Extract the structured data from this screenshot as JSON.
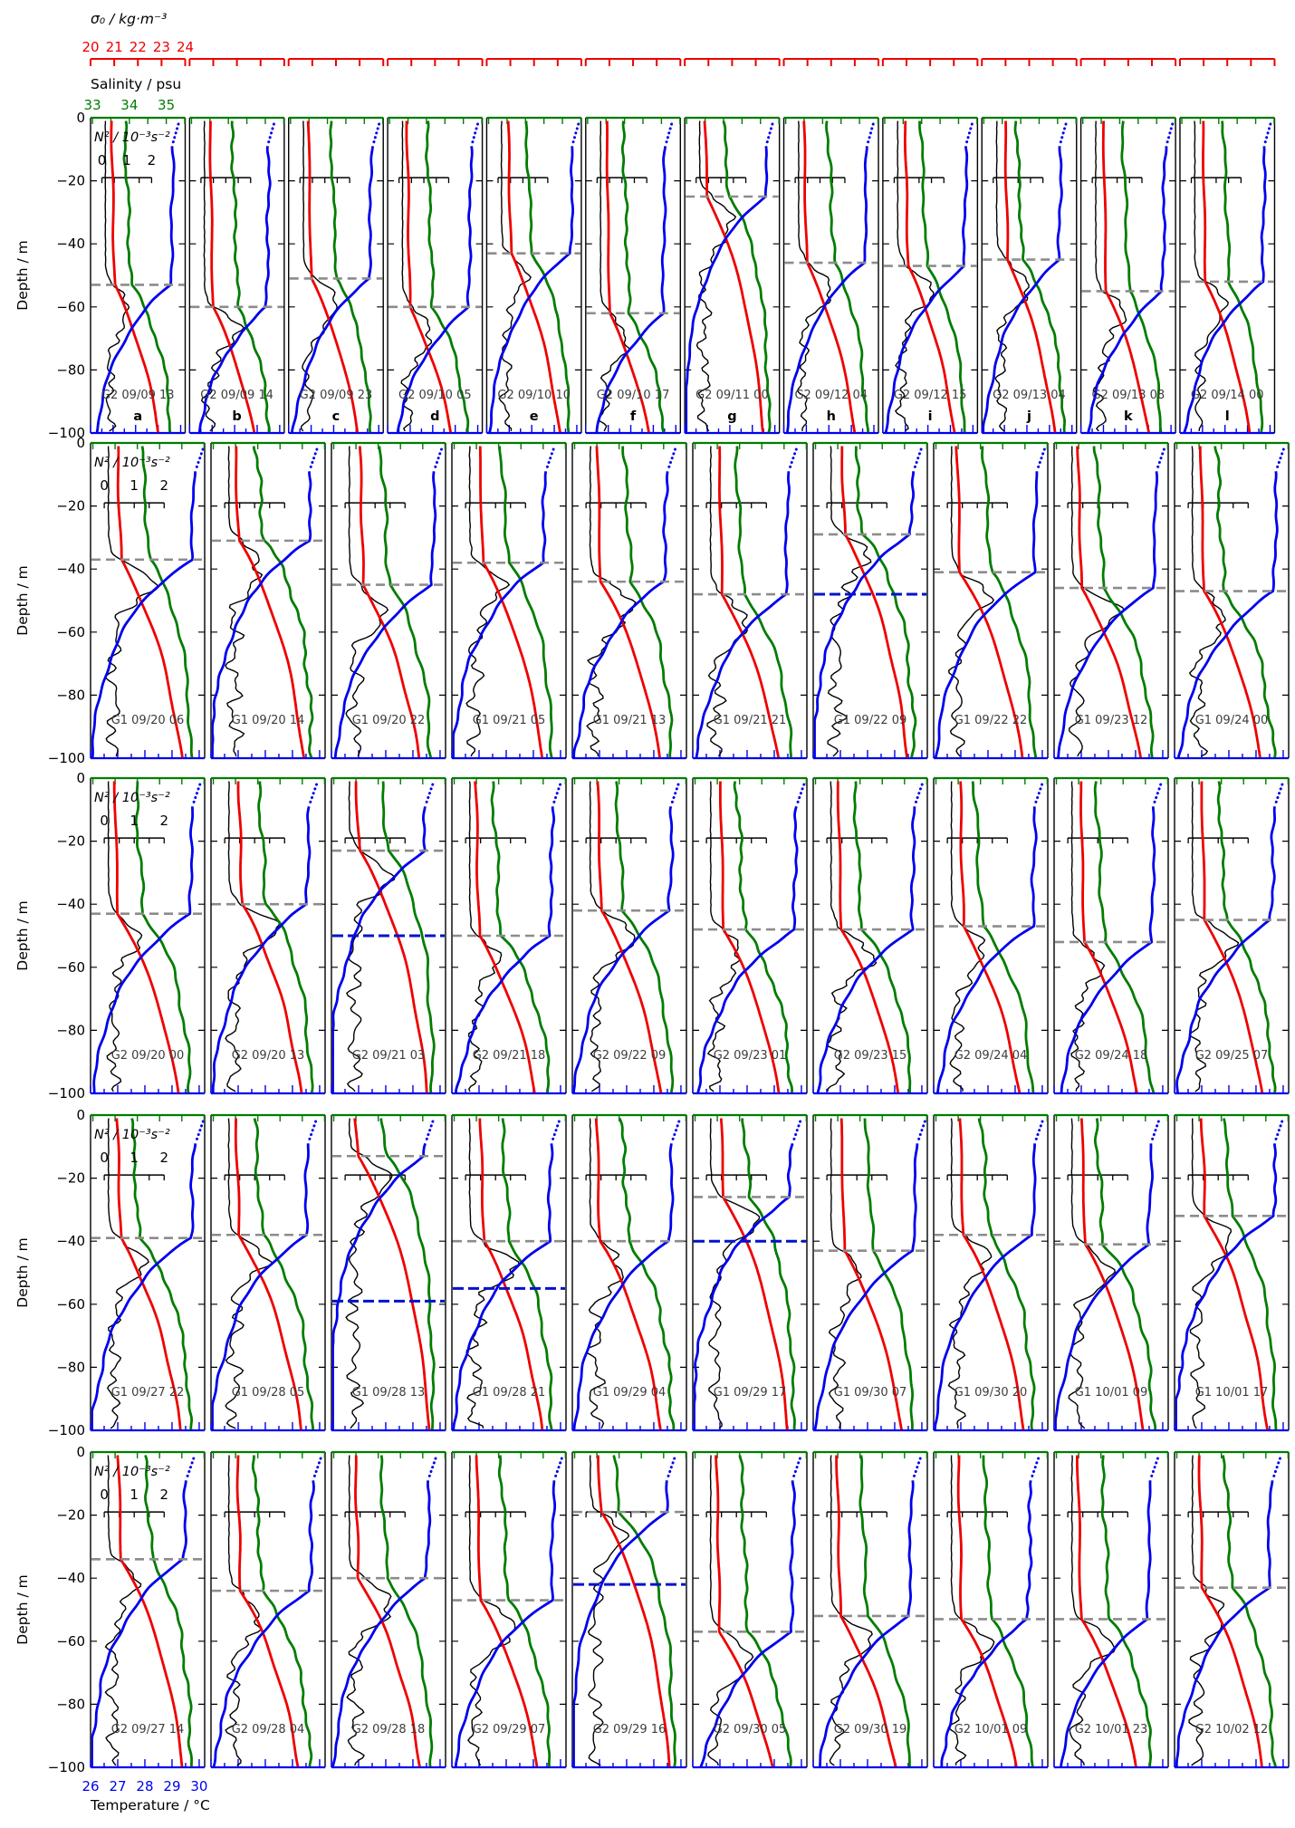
{
  "header": {
    "sigma_title": "σ₀ / kg·m⁻³",
    "salinity_title": "Salinity / psu",
    "n2_title": "N² / 10⁻³s⁻²"
  },
  "footer": {
    "temperature_title": "Temperature / °C"
  },
  "depth_axis": {
    "title": "Depth / m",
    "tick_labels": [
      "0",
      "−20",
      "−40",
      "−60",
      "−80",
      "−100"
    ]
  },
  "colors": {
    "sigma": "#ee0000",
    "salinity": "#007d00",
    "temperature": "#0000ee",
    "n2": "#000000",
    "mld_dash": "#8c8c8c",
    "secondary_dash": "#0013cc",
    "station_label": "#3c3c3c"
  },
  "chart_data": {
    "type": "line",
    "description": "Grid of 52 glider profile panels (depth 0 to −100 m). Each panel shows temperature (blue), salinity (green), potential density σ₀ (red) and buoyancy frequency N² (black) versus depth, with a gray dashed mixed-layer-depth line and, in some panels, a blue dashed secondary depth line. Panel captions give glider ID and date/hour.",
    "x_axes": {
      "sigma0": {
        "label": "σ₀ / kg·m⁻³",
        "tick_labels": [
          "20",
          "21",
          "22",
          "23",
          "24"
        ],
        "range": [
          20,
          24
        ],
        "color": "#ee0000",
        "position": "figure-top"
      },
      "salinity": {
        "label": "Salinity / psu",
        "tick_labels": [
          "33",
          "34",
          "35"
        ],
        "range": [
          32.95,
          35.55
        ],
        "color": "#007d00",
        "position": "panel-top"
      },
      "n2": {
        "label": "N² / 10⁻³s⁻²",
        "tick_labels": [
          "0",
          "1",
          "2"
        ],
        "range": [
          0,
          2
        ],
        "color": "#000000",
        "position": "inset-axis"
      },
      "temperature": {
        "label": "Temperature / °C",
        "tick_labels": [
          "26",
          "27",
          "28",
          "29",
          "30"
        ],
        "range": [
          26,
          30.2
        ],
        "color": "#0000ee",
        "position": "panel-bottom"
      }
    },
    "y_axis": {
      "label": "Depth / m",
      "tick_values": [
        0,
        -20,
        -40,
        -60,
        -80,
        -100
      ],
      "range": [
        -100,
        0
      ]
    },
    "legend": [
      {
        "name": "Temperature",
        "color": "#0000ee",
        "style": "solid, dotted near surface"
      },
      {
        "name": "Salinity",
        "color": "#007d00",
        "style": "solid"
      },
      {
        "name": "Potential density σ₀",
        "color": "#ee0000",
        "style": "solid"
      },
      {
        "name": "N² buoyancy frequency",
        "color": "#000000",
        "style": "solid thin"
      },
      {
        "name": "Mixed layer depth",
        "color": "#8c8c8c",
        "style": "dashed"
      },
      {
        "name": "Secondary depth mark",
        "color": "#0013cc",
        "style": "dashed"
      }
    ],
    "profile_defaults": {
      "t_surface": 29.7,
      "t_deep": 25.8,
      "s_surface": 34.0,
      "s_deep": 35.25,
      "sigma_surface": 20.9,
      "sigma_deep": 23.8,
      "n2_above_mld": 0.14,
      "n2_below_mld": 0.32
    },
    "rows": [
      {
        "panels": [
          {
            "label": "G2 09/09 13",
            "letter": "a",
            "mld_m": -53
          },
          {
            "label": "G2 09/09 14",
            "letter": "b",
            "mld_m": -60
          },
          {
            "label": "G2 09/09 23",
            "letter": "c",
            "mld_m": -51
          },
          {
            "label": "G2 09/10 05",
            "letter": "d",
            "mld_m": -60
          },
          {
            "label": "G2 09/10 10",
            "letter": "e",
            "mld_m": -43
          },
          {
            "label": "G2 09/10 17",
            "letter": "f",
            "mld_m": -62
          },
          {
            "label": "G2 09/11 00",
            "letter": "g",
            "mld_m": -25
          },
          {
            "label": "G2 09/12 04",
            "letter": "h",
            "mld_m": -46
          },
          {
            "label": "G2 09/12 15",
            "letter": "i",
            "mld_m": -47
          },
          {
            "label": "G2 09/13 04",
            "letter": "j",
            "mld_m": -45
          },
          {
            "label": "G2 09/13 08",
            "letter": "k",
            "mld_m": -55
          },
          {
            "label": "G2 09/14 00",
            "letter": "l",
            "mld_m": -52
          }
        ]
      },
      {
        "panels": [
          {
            "label": "G1 09/20 06",
            "mld_m": -37
          },
          {
            "label": "G1 09/20 14",
            "mld_m": -31
          },
          {
            "label": "G1 09/20 22",
            "mld_m": -45
          },
          {
            "label": "G1 09/21 05",
            "mld_m": -38
          },
          {
            "label": "G1 09/21 13",
            "mld_m": -44
          },
          {
            "label": "G1 09/21 21",
            "mld_m": -48
          },
          {
            "label": "G1 09/22 09",
            "mld_m": -29,
            "dash2_m": -48
          },
          {
            "label": "G1 09/22 22",
            "mld_m": -41
          },
          {
            "label": "G1 09/23 12",
            "mld_m": -46
          },
          {
            "label": "G1 09/24 00",
            "mld_m": -47
          }
        ]
      },
      {
        "panels": [
          {
            "label": "G2 09/20 00",
            "mld_m": -43
          },
          {
            "label": "G2 09/20 13",
            "mld_m": -40
          },
          {
            "label": "G2 09/21 03",
            "mld_m": -23,
            "dash2_m": -50
          },
          {
            "label": "G2 09/21 18",
            "mld_m": -50
          },
          {
            "label": "G2 09/22 09",
            "mld_m": -42
          },
          {
            "label": "G2 09/23 01",
            "mld_m": -48
          },
          {
            "label": "G2 09/23 15",
            "mld_m": -48
          },
          {
            "label": "G2 09/24 04",
            "mld_m": -47
          },
          {
            "label": "G2 09/24 18",
            "mld_m": -52
          },
          {
            "label": "G2 09/25 07",
            "mld_m": -45
          }
        ]
      },
      {
        "panels": [
          {
            "label": "G1 09/27 22",
            "mld_m": -39
          },
          {
            "label": "G1 09/28 05",
            "mld_m": -38
          },
          {
            "label": "G1 09/28 13",
            "mld_m": -13,
            "dash2_m": -59
          },
          {
            "label": "G1 09/28 21",
            "mld_m": -40,
            "dash2_m": -55
          },
          {
            "label": "G1 09/29 04",
            "mld_m": -40
          },
          {
            "label": "G1 09/29 17",
            "mld_m": -26,
            "dash2_m": -40
          },
          {
            "label": "G1 09/30 07",
            "mld_m": -43
          },
          {
            "label": "G1 09/30 20",
            "mld_m": -38
          },
          {
            "label": "G1 10/01 09",
            "mld_m": -41
          },
          {
            "label": "G1 10/01 17",
            "mld_m": -32
          }
        ]
      },
      {
        "panels": [
          {
            "label": "G2 09/27 14",
            "mld_m": -34
          },
          {
            "label": "G2 09/28 04",
            "mld_m": -44
          },
          {
            "label": "G2 09/28 18",
            "mld_m": -40
          },
          {
            "label": "G2 09/29 07",
            "mld_m": -47
          },
          {
            "label": "G2 09/29 16",
            "mld_m": -19,
            "dash2_m": -42
          },
          {
            "label": "G2 09/30 05",
            "mld_m": -57
          },
          {
            "label": "G2 09/30 19",
            "mld_m": -52
          },
          {
            "label": "G2 10/01 09",
            "mld_m": -53
          },
          {
            "label": "G2 10/01 23",
            "mld_m": -53
          },
          {
            "label": "G2 10/02 12",
            "mld_m": -43
          }
        ]
      }
    ]
  }
}
